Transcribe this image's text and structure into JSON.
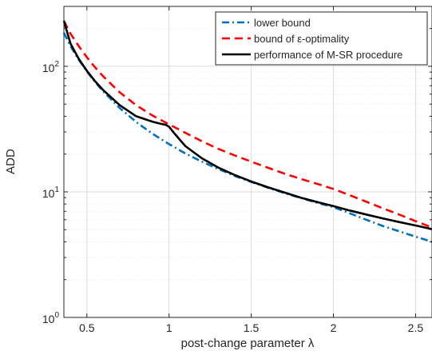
{
  "chart_data": {
    "type": "line",
    "title": "",
    "xlabel": "post-change parameter λ",
    "ylabel": "ADD",
    "xscale": "linear",
    "yscale": "log",
    "xlim": [
      0.36,
      2.6
    ],
    "ylim": [
      1,
      300
    ],
    "grid": true,
    "minor_grid": true,
    "legend_position": "top-right",
    "x_ticks": [
      0.5,
      1,
      1.5,
      2,
      2.5
    ],
    "x_tick_labels": [
      "0.5",
      "1",
      "1.5",
      "2",
      "2.5"
    ],
    "y_ticks": [
      1,
      10,
      100
    ],
    "y_tick_labels": [
      {
        "base": "10",
        "exp": "0"
      },
      {
        "base": "10",
        "exp": "1"
      },
      {
        "base": "10",
        "exp": "2"
      }
    ],
    "series": [
      {
        "name": "lower bound",
        "color": "#0072BD",
        "dash": "dashdot",
        "x": [
          0.36,
          0.4,
          0.45,
          0.5,
          0.55,
          0.6,
          0.7,
          0.8,
          0.9,
          1.0,
          1.1,
          1.2,
          1.3,
          1.4,
          1.5,
          1.6,
          1.7,
          1.8,
          1.9,
          2.0,
          2.1,
          2.2,
          2.3,
          2.4,
          2.5,
          2.6
        ],
        "y": [
          185,
          145,
          113,
          91,
          75,
          63,
          46.5,
          36,
          29,
          24,
          20.2,
          17.4,
          15.2,
          13.4,
          12,
          10.8,
          9.8,
          8.95,
          8.2,
          7.55,
          6.75,
          6.0,
          5.35,
          4.85,
          4.4,
          4.0
        ]
      },
      {
        "name": "bound of ε-optimality",
        "color": "#FF0000",
        "dash": "dashed",
        "x": [
          0.36,
          0.4,
          0.45,
          0.5,
          0.55,
          0.6,
          0.7,
          0.8,
          0.9,
          1.0,
          1.1,
          1.2,
          1.3,
          1.4,
          1.5,
          1.6,
          1.7,
          1.8,
          1.9,
          2.0,
          2.1,
          2.2,
          2.3,
          2.4,
          2.5,
          2.6
        ],
        "y": [
          230,
          182,
          145,
          118,
          98,
          83,
          62,
          49,
          40.5,
          34.5,
          29.5,
          25.3,
          22,
          19.5,
          17.4,
          15.6,
          14,
          12.7,
          11.6,
          10.55,
          9.4,
          8.35,
          7.4,
          6.6,
          5.85,
          5.2
        ]
      },
      {
        "name": "performance of M-SR procedure",
        "color": "#000000",
        "dash": "solid",
        "x": [
          0.36,
          0.4,
          0.45,
          0.5,
          0.55,
          0.6,
          0.7,
          0.8,
          0.9,
          0.95,
          0.98,
          1.0,
          1.03,
          1.07,
          1.1,
          1.2,
          1.3,
          1.4,
          1.5,
          1.6,
          1.7,
          1.8,
          1.9,
          2.0,
          2.1,
          2.2,
          2.3,
          2.4,
          2.5,
          2.6
        ],
        "y": [
          230,
          152,
          115,
          92,
          76,
          64.5,
          49,
          40,
          36.2,
          34.8,
          34.2,
          33,
          29.5,
          25.6,
          23.1,
          18.5,
          15.6,
          13.6,
          12.1,
          10.9,
          9.9,
          9.0,
          8.3,
          7.7,
          7.1,
          6.6,
          6.15,
          5.75,
          5.4,
          5.05
        ]
      }
    ]
  }
}
